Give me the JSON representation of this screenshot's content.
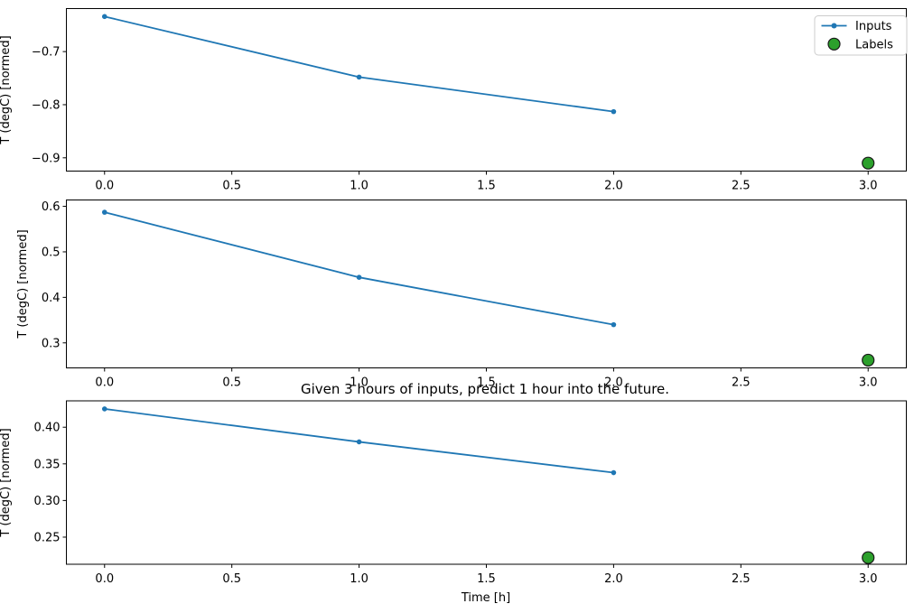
{
  "figure": {
    "title": "Given 3 hours of inputs, predict 1 hour into the future.",
    "xlabel": "Time [h]",
    "background": "#ffffff"
  },
  "legend": {
    "position": "upper right",
    "items": [
      {
        "label": "Inputs",
        "marker": "line-with-dot",
        "color": "#1f77b4"
      },
      {
        "label": "Labels",
        "marker": "circle",
        "fill": "#2ca02c",
        "edge": "#1a1a1a"
      }
    ]
  },
  "chart_data": [
    {
      "type": "line",
      "ylabel": "T (degC) [normed]",
      "xlim": [
        -0.15,
        3.15
      ],
      "ylim": [
        -0.925,
        -0.619
      ],
      "xticks": [
        0.0,
        0.5,
        1.0,
        1.5,
        2.0,
        2.5,
        3.0
      ],
      "xticklabels": [
        "0.0",
        "0.5",
        "1.0",
        "1.5",
        "2.0",
        "2.5",
        "3.0"
      ],
      "yticks": [
        -0.7,
        -0.8,
        -0.9
      ],
      "yticklabels": [
        "−0.7",
        "−0.8",
        "−0.9"
      ],
      "grid": false,
      "series": [
        {
          "name": "Inputs",
          "type": "line-markers",
          "color": "#1f77b4",
          "x": [
            0,
            1,
            2
          ],
          "y": [
            -0.634,
            -0.748,
            -0.813
          ]
        },
        {
          "name": "Labels",
          "type": "scatter",
          "fill": "#2ca02c",
          "edge": "#1a1a1a",
          "x": [
            3
          ],
          "y": [
            -0.91
          ]
        }
      ],
      "has_legend": true
    },
    {
      "type": "line",
      "ylabel": "T (degC) [normed]",
      "xlim": [
        -0.15,
        3.15
      ],
      "ylim": [
        0.245,
        0.614
      ],
      "xticks": [
        0.0,
        0.5,
        1.0,
        1.5,
        2.0,
        2.5,
        3.0
      ],
      "xticklabels": [
        "0.0",
        "0.5",
        "1.0",
        "1.5",
        "2.0",
        "2.5",
        "3.0"
      ],
      "yticks": [
        0.6,
        0.5,
        0.4,
        0.3
      ],
      "yticklabels": [
        "0.6",
        "0.5",
        "0.4",
        "0.3"
      ],
      "grid": false,
      "series": [
        {
          "name": "Inputs",
          "type": "line-markers",
          "color": "#1f77b4",
          "x": [
            0,
            1,
            2
          ],
          "y": [
            0.587,
            0.444,
            0.34
          ]
        },
        {
          "name": "Labels",
          "type": "scatter",
          "fill": "#2ca02c",
          "edge": "#1a1a1a",
          "x": [
            3
          ],
          "y": [
            0.262
          ]
        }
      ],
      "has_legend": false
    },
    {
      "type": "line",
      "ylabel": "T (degC) [normed]",
      "xlabel": "Time [h]",
      "xlim": [
        -0.15,
        3.15
      ],
      "ylim": [
        0.213,
        0.436
      ],
      "xticks": [
        0.0,
        0.5,
        1.0,
        1.5,
        2.0,
        2.5,
        3.0
      ],
      "xticklabels": [
        "0.0",
        "0.5",
        "1.0",
        "1.5",
        "2.0",
        "2.5",
        "3.0"
      ],
      "yticks": [
        0.4,
        0.35,
        0.3,
        0.25
      ],
      "yticklabels": [
        "0.40",
        "0.35",
        "0.30",
        "0.25"
      ],
      "grid": false,
      "series": [
        {
          "name": "Inputs",
          "type": "line-markers",
          "color": "#1f77b4",
          "x": [
            0,
            1,
            2
          ],
          "y": [
            0.425,
            0.38,
            0.338
          ]
        },
        {
          "name": "Labels",
          "type": "scatter",
          "fill": "#2ca02c",
          "edge": "#1a1a1a",
          "x": [
            3
          ],
          "y": [
            0.222
          ]
        }
      ],
      "has_legend": false
    }
  ]
}
